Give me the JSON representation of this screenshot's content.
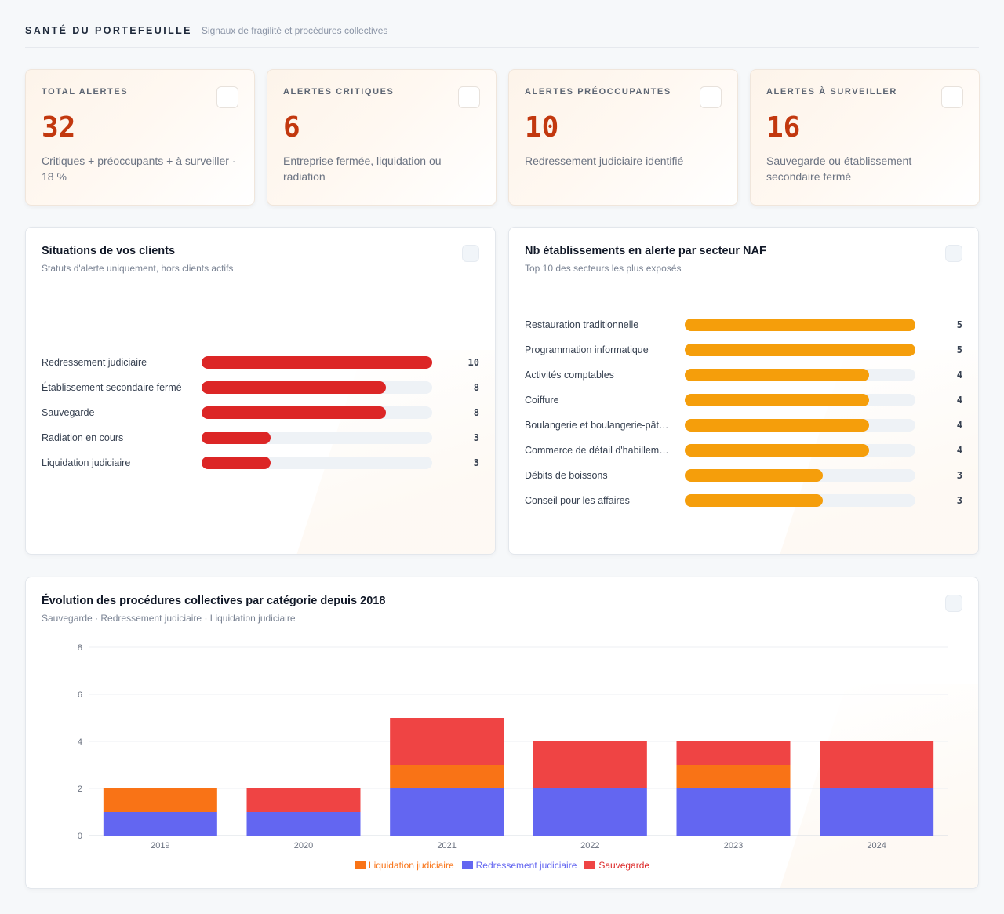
{
  "header": {
    "title": "SANTÉ DU PORTEFEUILLE",
    "subtitle": "Signaux de fragilité et procédures collectives"
  },
  "kpis": [
    {
      "label": "TOTAL ALERTES",
      "value": "32",
      "description": "Critiques + préoccupants + à surveiller · 18 %"
    },
    {
      "label": "ALERTES CRITIQUES",
      "value": "6",
      "description": "Entreprise fermée, liquidation ou radiation"
    },
    {
      "label": "ALERTES PRÉOCCUPANTES",
      "value": "10",
      "description": "Redressement judiciaire identifié"
    },
    {
      "label": "ALERTES À SURVEILLER",
      "value": "16",
      "description": "Sauvegarde ou établissement secondaire fermé"
    }
  ],
  "situations": {
    "title": "Situations de vos clients",
    "subtitle": "Statuts d'alerte uniquement, hors clients actifs",
    "bar_color": "#dc2626",
    "max": 10,
    "items": [
      {
        "label": "Redressement judiciaire",
        "value": 10
      },
      {
        "label": "Établissement secondaire fermé",
        "value": 8
      },
      {
        "label": "Sauvegarde",
        "value": 8
      },
      {
        "label": "Radiation en cours",
        "value": 3
      },
      {
        "label": "Liquidation judiciaire",
        "value": 3
      }
    ]
  },
  "sectors": {
    "title": "Nb établissements en alerte par secteur NAF",
    "subtitle": "Top 10 des secteurs les plus exposés",
    "bar_color": "#f59e0b",
    "max": 5,
    "items": [
      {
        "label": "Restauration traditionnelle",
        "value": 5
      },
      {
        "label": "Programmation informatique",
        "value": 5
      },
      {
        "label": "Activités comptables",
        "value": 4
      },
      {
        "label": "Coiffure",
        "value": 4
      },
      {
        "label": "Boulangerie et boulangerie-pât…",
        "value": 4
      },
      {
        "label": "Commerce de détail d'habillem…",
        "value": 4
      },
      {
        "label": "Débits de boissons",
        "value": 3
      },
      {
        "label": "Conseil pour les affaires",
        "value": 3
      }
    ]
  },
  "evolution": {
    "title": "Évolution des procédures collectives par catégorie depuis 2018",
    "subtitle": "Sauvegarde · Redressement judiciaire · Liquidation judiciaire"
  },
  "chart_data": {
    "type": "bar",
    "stacked": true,
    "categories": [
      "2019",
      "2020",
      "2021",
      "2022",
      "2023",
      "2024"
    ],
    "series": [
      {
        "name": "Redressement judiciaire",
        "color": "#6366f1",
        "values": [
          1,
          1,
          2,
          2,
          2,
          2
        ]
      },
      {
        "name": "Liquidation judiciaire",
        "color": "#f97316",
        "values": [
          1,
          0,
          1,
          0,
          1,
          0
        ]
      },
      {
        "name": "Sauvegarde",
        "color": "#ef4444",
        "values": [
          0,
          1,
          2,
          2,
          1,
          2
        ]
      }
    ],
    "legend_order": [
      "Liquidation judiciaire",
      "Redressement judiciaire",
      "Sauvegarde"
    ],
    "legend_text_colors": {
      "Liquidation judiciaire": "#f97316",
      "Redressement judiciaire": "#6366f1",
      "Sauvegarde": "#dc2626"
    },
    "yticks": [
      0,
      2,
      4,
      6,
      8
    ],
    "ylim": [
      0,
      8
    ],
    "grid": true,
    "legend_position": "bottom"
  }
}
